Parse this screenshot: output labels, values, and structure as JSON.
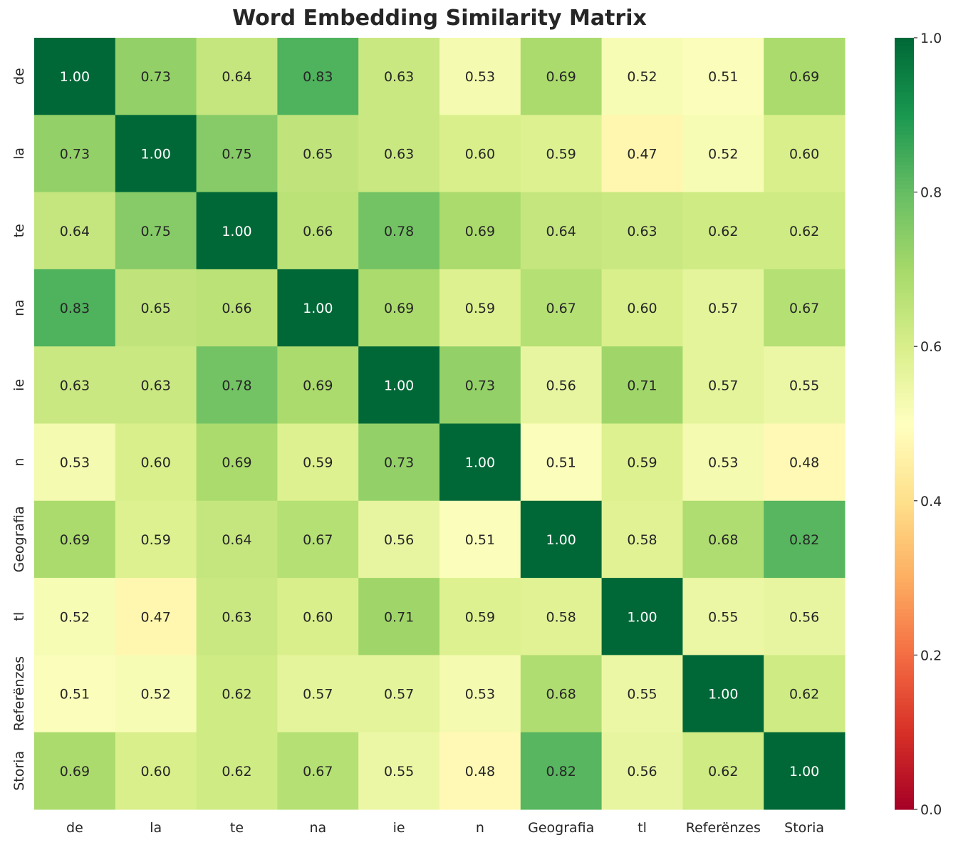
{
  "chart_data": {
    "type": "heatmap",
    "title": "Word Embedding Similarity Matrix",
    "xlabel": "",
    "ylabel": "",
    "colormap": "RdYlGn",
    "vmin": 0.0,
    "vmax": 1.0,
    "colorbar_ticks": [
      "0.0",
      "0.2",
      "0.4",
      "0.6",
      "0.8",
      "1.0"
    ],
    "labels": [
      "de",
      "la",
      "te",
      "na",
      "ie",
      "n",
      "Geografia",
      "tl",
      "Referënzes",
      "Storia"
    ],
    "values": [
      [
        1.0,
        0.73,
        0.64,
        0.83,
        0.63,
        0.53,
        0.69,
        0.52,
        0.51,
        0.69
      ],
      [
        0.73,
        1.0,
        0.75,
        0.65,
        0.63,
        0.6,
        0.59,
        0.47,
        0.52,
        0.6
      ],
      [
        0.64,
        0.75,
        1.0,
        0.66,
        0.78,
        0.69,
        0.64,
        0.63,
        0.62,
        0.62
      ],
      [
        0.83,
        0.65,
        0.66,
        1.0,
        0.69,
        0.59,
        0.67,
        0.6,
        0.57,
        0.67
      ],
      [
        0.63,
        0.63,
        0.78,
        0.69,
        1.0,
        0.73,
        0.56,
        0.71,
        0.57,
        0.55
      ],
      [
        0.53,
        0.6,
        0.69,
        0.59,
        0.73,
        1.0,
        0.51,
        0.59,
        0.53,
        0.48
      ],
      [
        0.69,
        0.59,
        0.64,
        0.67,
        0.56,
        0.51,
        1.0,
        0.58,
        0.68,
        0.82
      ],
      [
        0.52,
        0.47,
        0.63,
        0.6,
        0.71,
        0.59,
        0.58,
        1.0,
        0.55,
        0.56
      ],
      [
        0.51,
        0.52,
        0.62,
        0.57,
        0.57,
        0.53,
        0.68,
        0.55,
        1.0,
        0.62
      ],
      [
        0.69,
        0.6,
        0.62,
        0.67,
        0.55,
        0.48,
        0.82,
        0.56,
        0.62,
        1.0
      ]
    ],
    "annotation_format": "0.00",
    "legend": "colorbar-right"
  }
}
